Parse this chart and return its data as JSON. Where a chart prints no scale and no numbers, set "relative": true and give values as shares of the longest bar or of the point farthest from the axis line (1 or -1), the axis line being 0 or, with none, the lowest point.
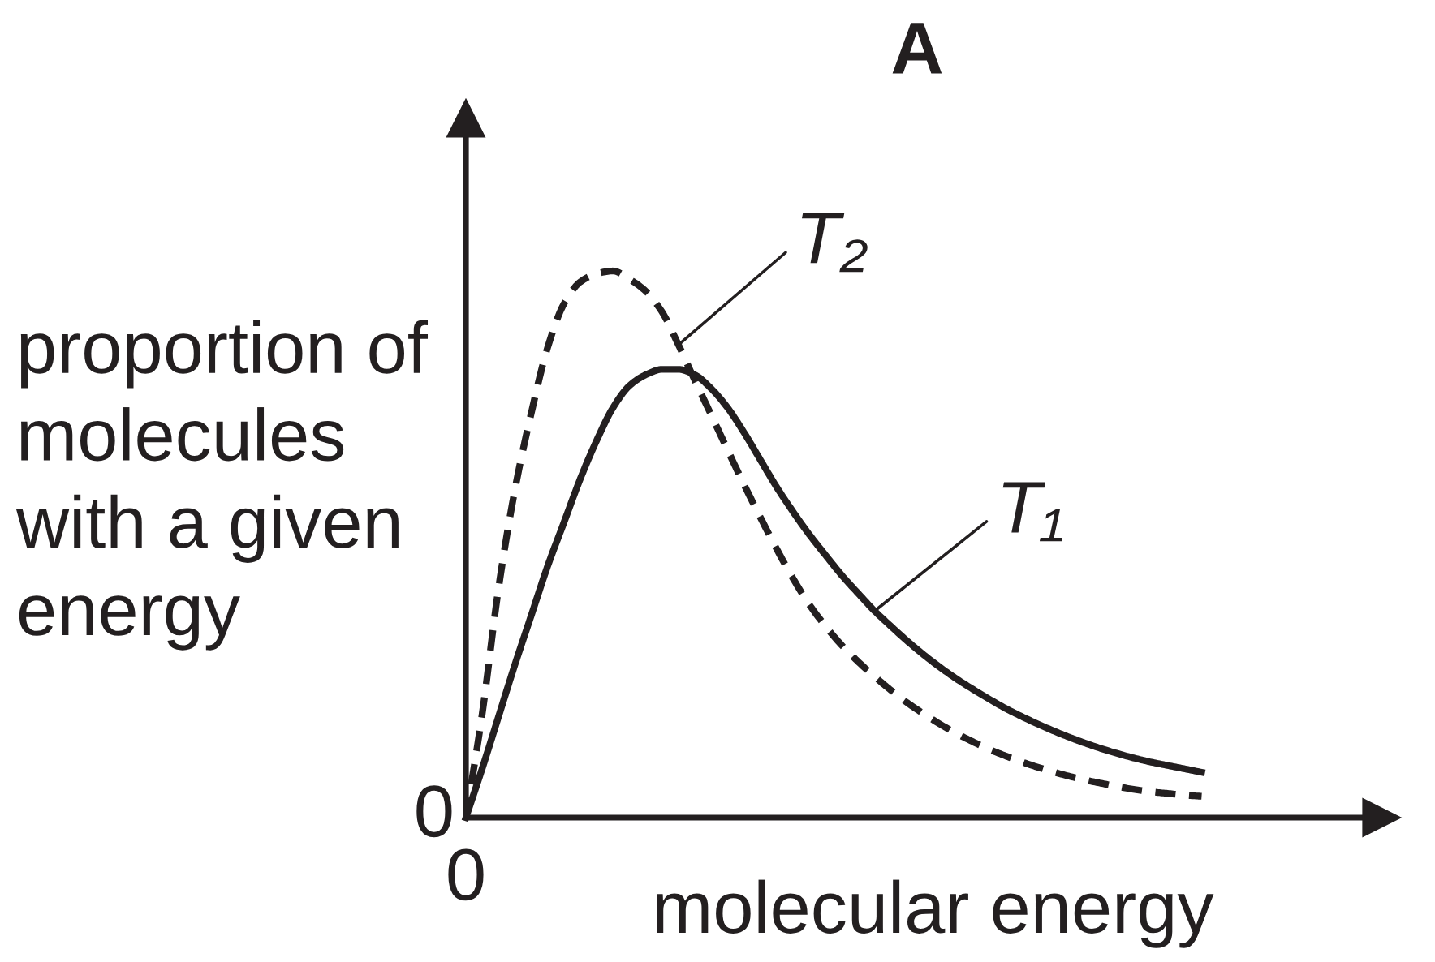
{
  "chart_data": {
    "type": "line",
    "relative": true,
    "title": "A",
    "xlabel": "molecular energy",
    "ylabel": "proportion of\nmolecules\nwith a given\nenergy",
    "annotations": [
      "0",
      "0"
    ],
    "categories": [
      null,
      null,
      null,
      null,
      null,
      null,
      null,
      null,
      null,
      null,
      null,
      null,
      null,
      null,
      null,
      null,
      null,
      null,
      null,
      null,
      null,
      null,
      null,
      null,
      null,
      null,
      null,
      null,
      null,
      null,
      null,
      null,
      null,
      null,
      null,
      null,
      null,
      null,
      null,
      null,
      null,
      null,
      null,
      null,
      null,
      null
    ],
    "series": [
      {
        "name": "T₁",
        "color": "#231f20",
        "line_style": "solid",
        "values": [
          0,
          0.09,
          0.185,
          0.28,
          0.37,
          0.46,
          0.54,
          0.62,
          0.69,
          0.75,
          0.79,
          0.81,
          0.82,
          0.82,
          0.81,
          0.785,
          0.75,
          0.705,
          0.655,
          0.605,
          0.56,
          0.518,
          0.48,
          0.443,
          0.41,
          0.378,
          0.35,
          0.323,
          0.298,
          0.275,
          0.254,
          0.235,
          0.217,
          0.2,
          0.185,
          0.171,
          0.158,
          0.146,
          0.135,
          0.125,
          0.116,
          0.108,
          0.101,
          0.095,
          0.089,
          0.083
        ]
      },
      {
        "name": "T₂",
        "color": "#231f20",
        "line_style": "dashed",
        "values": [
          0,
          0.19,
          0.42,
          0.6,
          0.74,
          0.86,
          0.94,
          0.98,
          0.995,
          1.0,
          0.985,
          0.963,
          0.925,
          0.865,
          0.8,
          0.737,
          0.673,
          0.61,
          0.55,
          0.492,
          0.438,
          0.39,
          0.35,
          0.315,
          0.285,
          0.258,
          0.233,
          0.21,
          0.19,
          0.171,
          0.154,
          0.139,
          0.125,
          0.113,
          0.102,
          0.092,
          0.083,
          0.075,
          0.068,
          0.062,
          0.056,
          0.051,
          0.047,
          0.044,
          0.041,
          0.039
        ]
      }
    ]
  }
}
